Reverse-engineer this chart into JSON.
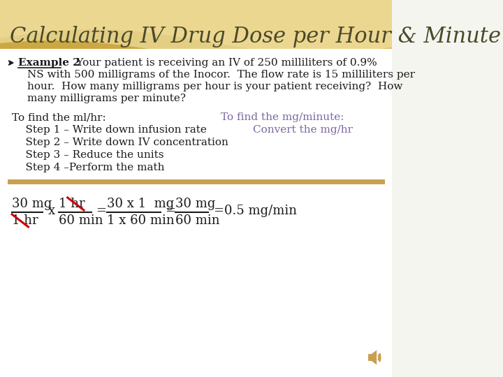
{
  "title": "Calculating IV Drug Dose per Hour & Minute",
  "title_color": "#4a4a2a",
  "title_fontsize": 22,
  "bg_color": "#f5f5f0",
  "body_text_color": "#1a1a1a",
  "purple_text_color": "#7b68a0",
  "find_ml_hr": "To find the ml/hr:",
  "find_mg_min": "To find the mg/minute:",
  "step1": "    Step 1 – Write down infusion rate",
  "step1_right": "        Convert the mg/hr",
  "step2": "    Step 2 – Write down IV concentration",
  "step3": "    Step 3 – Reduce the units",
  "step4": "    Step 4 –Perform the math",
  "divider_color": "#c8a050",
  "fraction_color": "#1a1a1a",
  "red_color": "#cc0000",
  "speaker_color": "#c8a050",
  "wave1_color": "#c8a030",
  "wave2_color": "#e8c870",
  "wave3_color": "#f5e8b0",
  "white_color": "#ffffff"
}
